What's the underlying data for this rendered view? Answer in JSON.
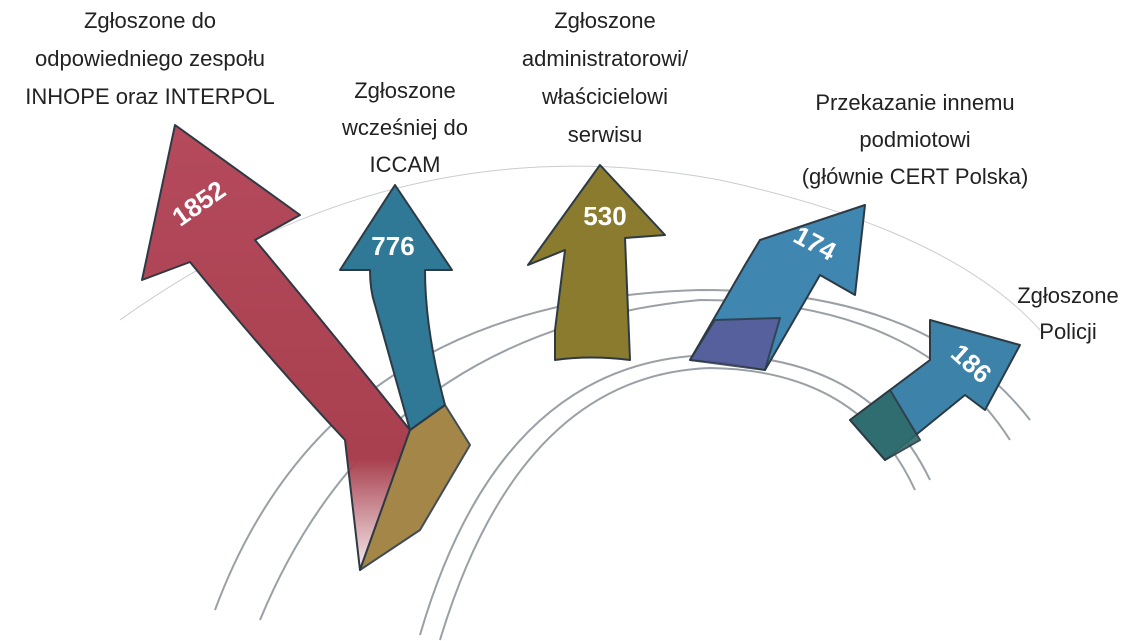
{
  "arrows": [
    {
      "label": [
        "Zgłoszone do",
        "odpowiedniego zespołu",
        "INHOPE oraz INTERPOL"
      ],
      "value": "1852"
    },
    {
      "label": [
        "Zgłoszone",
        "wcześniej do",
        "ICCAM"
      ],
      "value": "776"
    },
    {
      "label": [
        "Zgłoszone",
        "administratorowi/",
        "właścicielowi",
        "serwisu"
      ],
      "value": "530"
    },
    {
      "label": [
        "Przekazanie innemu",
        "podmiotowi",
        "(głównie CERT Polska)"
      ],
      "value": "174"
    },
    {
      "label": [
        "Zgłoszone",
        "Policji"
      ],
      "value": "186"
    }
  ]
}
